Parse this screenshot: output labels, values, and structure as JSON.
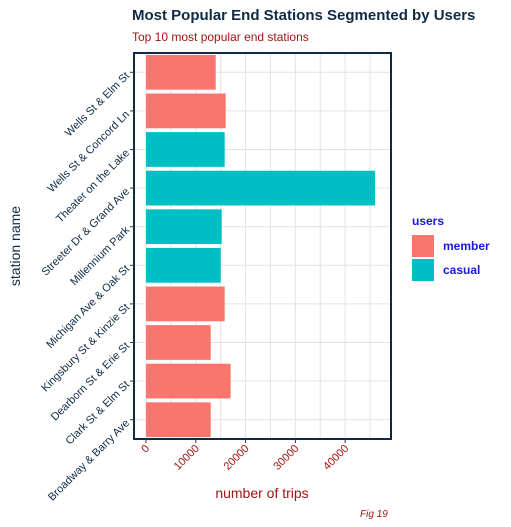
{
  "title": "Most Popular End Stations Segmented by Users",
  "subtitle": "Top 10 most popular end stations",
  "caption": "Fig 19",
  "legend": {
    "title": "users",
    "items": [
      {
        "label": "member",
        "color": "#f8766d"
      },
      {
        "label": "casual",
        "color": "#00bfc4"
      }
    ]
  },
  "chart_data": {
    "type": "bar",
    "orientation": "horizontal",
    "xlabel": "number of trips",
    "ylabel": "station name",
    "xlim": [
      0,
      47000
    ],
    "xticks": [
      0,
      10000,
      20000,
      30000,
      40000
    ],
    "xtick_labels": [
      "0",
      "10000",
      "20000",
      "30000",
      "40000"
    ],
    "grid": true,
    "legend_position": "right",
    "categories": [
      "Wells St & Elm St",
      "Wells St & Concord Ln",
      "Theater on the Lake",
      "Streeter Dr & Grand Ave",
      "Millennium Park",
      "Michigan Ave & Oak St",
      "Kingsbury St & Kinzie St",
      "Dearborn St & Erie St",
      "Clark St & Elm St",
      "Broadway & Barry Ave"
    ],
    "users": [
      "member",
      "member",
      "casual",
      "casual",
      "casual",
      "casual",
      "member",
      "member",
      "member",
      "member"
    ],
    "values": [
      14000,
      16000,
      15800,
      46000,
      15200,
      15000,
      15800,
      13000,
      17000,
      13000
    ]
  }
}
